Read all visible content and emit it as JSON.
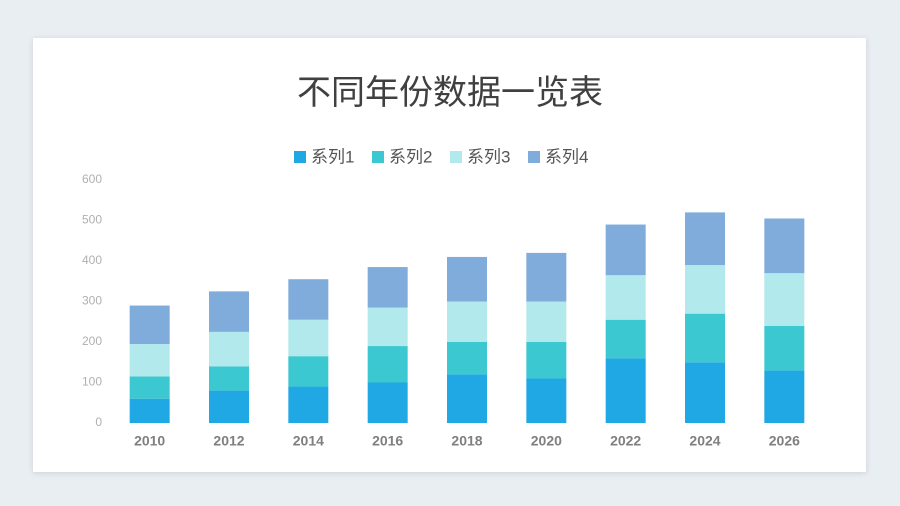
{
  "chart_data": {
    "type": "bar",
    "stacked": true,
    "title": "不同年份数据一览表",
    "categories": [
      "2010",
      "2012",
      "2014",
      "2016",
      "2018",
      "2020",
      "2022",
      "2024",
      "2026"
    ],
    "series": [
      {
        "name": "系列1",
        "color": "#1fa8e4",
        "values": [
          60,
          80,
          90,
          100,
          120,
          110,
          160,
          150,
          130
        ]
      },
      {
        "name": "系列2",
        "color": "#3cc8d0",
        "values": [
          55,
          60,
          75,
          90,
          80,
          90,
          95,
          120,
          110
        ]
      },
      {
        "name": "系列3",
        "color": "#b2e9ec",
        "values": [
          80,
          85,
          90,
          95,
          100,
          100,
          110,
          120,
          130
        ]
      },
      {
        "name": "系列4",
        "color": "#7facda",
        "values": [
          95,
          100,
          100,
          100,
          110,
          120,
          125,
          130,
          135
        ]
      }
    ],
    "ylim": [
      0,
      600
    ],
    "yticks": [
      0,
      100,
      200,
      300,
      400,
      500,
      600
    ],
    "grid": false,
    "legend": "top"
  }
}
